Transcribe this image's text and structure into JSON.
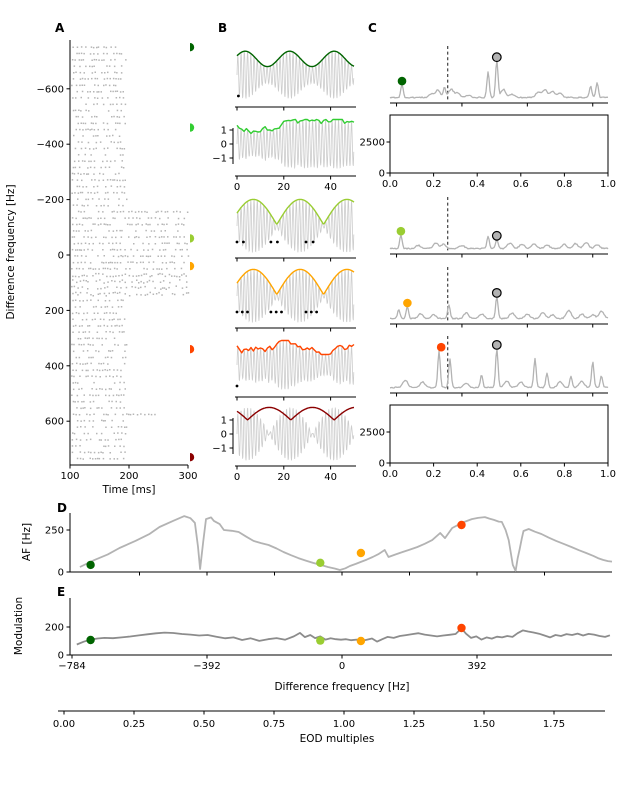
{
  "figure": {
    "background": "#ffffff"
  },
  "colors": {
    "carrier": "#cccccc",
    "spectrum_line": "#b3b3b3",
    "af_line": "#b3b3b3",
    "mod_line": "#8c8c8c",
    "raster_dot": "#b5b5b5",
    "circle_marker_fill": "#b3b3b3",
    "axis": "#000000",
    "darkgreen": "#006400",
    "limegreen": "#32cd32",
    "yellowgreen": "#9acd32",
    "orange": "#ffa500",
    "orangered": "#ff4500",
    "darkred": "#8b0000"
  },
  "chart_data": {
    "panelA": {
      "type": "scatter",
      "label": "A",
      "xlabel": "Time [ms]",
      "ylabel": "Difference frequency [Hz]",
      "xticks": [
        100,
        200,
        300
      ],
      "yticks": [
        -600,
        -400,
        -200,
        0,
        200,
        400,
        600
      ],
      "ylim": [
        -784,
        784
      ],
      "xlim": [
        100,
        300
      ],
      "raster": {
        "trial_rows": 66,
        "short_trial_ms": [
          100,
          195
        ],
        "long_trial_ms": [
          100,
          300
        ],
        "long_row_range": [
          26,
          39
        ],
        "dense_row_range": [
          36,
          39
        ],
        "medium_row": {
          "index": 58,
          "end_ms": 245
        }
      },
      "example_markers": [
        {
          "name": "darkgreen",
          "color": "#006400",
          "hz": -750
        },
        {
          "name": "limegreen",
          "color": "#32cd32",
          "hz": -460
        },
        {
          "name": "yellowgreen",
          "color": "#9acd32",
          "hz": -60
        },
        {
          "name": "orange",
          "color": "#ffa500",
          "hz": 40
        },
        {
          "name": "orangered",
          "color": "#ff4500",
          "hz": 340
        },
        {
          "name": "darkred",
          "color": "#8b0000",
          "hz": 730
        }
      ]
    },
    "panelB": {
      "type": "line",
      "label": "B",
      "duration_ms": 50,
      "xticks": [
        0,
        20,
        40
      ],
      "yticks": [
        1,
        0,
        -1
      ],
      "rows": [
        {
          "color": "#006400",
          "envelope": "sine",
          "beat_period_ms": 19,
          "peak_ms": 13,
          "spikes": [
            0.012
          ],
          "labeled_axes": false
        },
        {
          "color": "#32cd32",
          "envelope": "noisy",
          "spikes": [],
          "labeled_axes": true
        },
        {
          "color": "#9acd32",
          "envelope": "rectified",
          "scallop_period_ms": 20,
          "zero_ms": 17,
          "spikes": [
            0.0,
            0.055,
            0.29,
            0.345,
            0.59,
            0.65
          ],
          "labeled_axes": false
        },
        {
          "color": "#ffa500",
          "envelope": "rectified",
          "scallop_period_ms": 20,
          "zero_ms": 17,
          "spikes": [
            0.0,
            0.045,
            0.09,
            0.29,
            0.335,
            0.38,
            0.59,
            0.635,
            0.68
          ],
          "labeled_axes": false
        },
        {
          "color": "#ff4500",
          "envelope": "noisy",
          "spikes": [
            0.0
          ],
          "labeled_axes": false
        },
        {
          "color": "#8b0000",
          "envelope": "rectified_high",
          "scallop_period_ms": 18.5,
          "zero_ms": 4.5,
          "spikes": [],
          "labeled_axes": true
        }
      ]
    },
    "panelC": {
      "label": "C",
      "dashed_line_frac": 0.265,
      "circle_frac": 0.49,
      "empty_box_xticks": [
        0.0,
        0.2,
        0.4,
        0.6,
        0.8,
        1.0
      ],
      "empty_box_yticks": [
        2500,
        0
      ],
      "rows": [
        {
          "type": "spectrum",
          "dot": {
            "color": "#006400",
            "frac": 0.055,
            "height": 0.28
          },
          "circle_height": 0.8,
          "peaks": [
            [
              0.055,
              0.28
            ],
            [
              0.19,
              0.08
            ],
            [
              0.22,
              0.16
            ],
            [
              0.25,
              0.22
            ],
            [
              0.28,
              0.18
            ],
            [
              0.31,
              0.1
            ],
            [
              0.36,
              0.05
            ],
            [
              0.45,
              0.55
            ],
            [
              0.49,
              0.8
            ],
            [
              0.52,
              0.18
            ],
            [
              0.56,
              0.07
            ],
            [
              0.68,
              0.12
            ],
            [
              0.71,
              0.17
            ],
            [
              0.745,
              0.14
            ],
            [
              0.78,
              0.09
            ],
            [
              0.92,
              0.25
            ],
            [
              0.95,
              0.33
            ]
          ]
        },
        {
          "type": "empty"
        },
        {
          "type": "spectrum",
          "dot": {
            "color": "#9acd32",
            "frac": 0.05,
            "height": 0.3
          },
          "circle_height": 0.2,
          "peaks": [
            [
              0.05,
              0.3
            ],
            [
              0.13,
              0.07
            ],
            [
              0.21,
              0.12
            ],
            [
              0.245,
              0.09
            ],
            [
              0.33,
              0.07
            ],
            [
              0.45,
              0.26
            ],
            [
              0.49,
              0.2
            ],
            [
              0.55,
              0.12
            ],
            [
              0.605,
              0.1
            ],
            [
              0.66,
              0.11
            ],
            [
              0.72,
              0.08
            ],
            [
              0.8,
              0.09
            ],
            [
              0.85,
              0.11
            ],
            [
              0.9,
              0.13
            ],
            [
              0.95,
              0.08
            ]
          ]
        },
        {
          "type": "spectrum",
          "dot": {
            "color": "#ffa500",
            "frac": 0.08,
            "height": 0.26
          },
          "circle_height": 0.48,
          "peaks": [
            [
              0.04,
              0.2
            ],
            [
              0.08,
              0.26
            ],
            [
              0.14,
              0.1
            ],
            [
              0.2,
              0.08
            ],
            [
              0.27,
              0.3
            ],
            [
              0.35,
              0.12
            ],
            [
              0.42,
              0.1
            ],
            [
              0.49,
              0.48
            ],
            [
              0.56,
              0.12
            ],
            [
              0.63,
              0.1
            ],
            [
              0.7,
              0.13
            ],
            [
              0.745,
              0.08
            ],
            [
              0.82,
              0.18
            ],
            [
              0.88,
              0.1
            ],
            [
              0.93,
              0.08
            ],
            [
              0.97,
              0.16
            ]
          ]
        },
        {
          "type": "spectrum",
          "dot": {
            "color": "#ff4500",
            "frac": 0.235,
            "height": 0.8
          },
          "circle_height": 0.85,
          "peaks": [
            [
              0.07,
              0.16
            ],
            [
              0.15,
              0.12
            ],
            [
              0.225,
              0.8
            ],
            [
              0.275,
              0.62
            ],
            [
              0.35,
              0.1
            ],
            [
              0.42,
              0.28
            ],
            [
              0.49,
              0.85
            ],
            [
              0.535,
              0.14
            ],
            [
              0.6,
              0.12
            ],
            [
              0.665,
              0.62
            ],
            [
              0.72,
              0.3
            ],
            [
              0.78,
              0.12
            ],
            [
              0.83,
              0.24
            ],
            [
              0.88,
              0.14
            ],
            [
              0.93,
              0.55
            ],
            [
              0.97,
              0.25
            ]
          ]
        },
        {
          "type": "empty"
        }
      ]
    },
    "panelD": {
      "type": "line",
      "label": "D",
      "ylabel": "AF [Hz]",
      "yticks": [
        250,
        0
      ],
      "ylim": [
        0,
        420
      ],
      "xlim": [
        -784,
        784
      ],
      "xticks_unlabeled": [
        -588,
        -392,
        -196,
        0,
        196,
        392,
        588
      ],
      "line": [
        [
          -761,
          30
        ],
        [
          -720,
          70
        ],
        [
          -680,
          105
        ],
        [
          -646,
          143
        ],
        [
          -600,
          185
        ],
        [
          -560,
          225
        ],
        [
          -530,
          268
        ],
        [
          -490,
          305
        ],
        [
          -458,
          333
        ],
        [
          -440,
          320
        ],
        [
          -427,
          292
        ],
        [
          -418,
          150
        ],
        [
          -412,
          18
        ],
        [
          -403,
          180
        ],
        [
          -395,
          315
        ],
        [
          -380,
          325
        ],
        [
          -372,
          304
        ],
        [
          -355,
          285
        ],
        [
          -343,
          250
        ],
        [
          -320,
          245
        ],
        [
          -300,
          238
        ],
        [
          -278,
          210
        ],
        [
          -257,
          185
        ],
        [
          -235,
          172
        ],
        [
          -213,
          161
        ],
        [
          -190,
          140
        ],
        [
          -170,
          119
        ],
        [
          -148,
          100
        ],
        [
          -127,
          83
        ],
        [
          -105,
          68
        ],
        [
          -84,
          54
        ],
        [
          -62,
          42
        ],
        [
          -41,
          30
        ],
        [
          -20,
          20
        ],
        [
          -6,
          12
        ],
        [
          10,
          22
        ],
        [
          23,
          36
        ],
        [
          40,
          48
        ],
        [
          55,
          60
        ],
        [
          72,
          74
        ],
        [
          89,
          89
        ],
        [
          107,
          108
        ],
        [
          124,
          131
        ],
        [
          135,
          89
        ],
        [
          155,
          104
        ],
        [
          176,
          119
        ],
        [
          198,
          134
        ],
        [
          219,
          149
        ],
        [
          240,
          168
        ],
        [
          262,
          190
        ],
        [
          285,
          232
        ],
        [
          299,
          202
        ],
        [
          320,
          262
        ],
        [
          348,
          292
        ],
        [
          377,
          315
        ],
        [
          395,
          322
        ],
        [
          415,
          327
        ],
        [
          428,
          318
        ],
        [
          441,
          310
        ],
        [
          455,
          300
        ],
        [
          464,
          298
        ],
        [
          475,
          250
        ],
        [
          484,
          190
        ],
        [
          496,
          42
        ],
        [
          504,
          6
        ],
        [
          510,
          80
        ],
        [
          516,
          137
        ],
        [
          522,
          200
        ],
        [
          527,
          244
        ],
        [
          542,
          256
        ],
        [
          560,
          240
        ],
        [
          579,
          226
        ],
        [
          600,
          205
        ],
        [
          622,
          185
        ],
        [
          645,
          166
        ],
        [
          666,
          149
        ],
        [
          688,
          130
        ],
        [
          709,
          113
        ],
        [
          730,
          96
        ],
        [
          743,
          83
        ],
        [
          758,
          72
        ],
        [
          772,
          65
        ],
        [
          784,
          62
        ]
      ],
      "dots": [
        {
          "color": "#006400",
          "hz": -730,
          "value": 42
        },
        {
          "color": "#9acd32",
          "hz": -63,
          "value": 55
        },
        {
          "color": "#ffa500",
          "hz": 55,
          "value": 113
        },
        {
          "color": "#ff4500",
          "hz": 347,
          "value": 280
        }
      ]
    },
    "panelE": {
      "type": "line",
      "label": "E",
      "ylabel": "Modulation",
      "xlabel": "Difference frequency [Hz]",
      "yticks": [
        200,
        0
      ],
      "ylim": [
        0,
        400
      ],
      "xlim": [
        -784,
        784
      ],
      "xticks": [
        -784,
        -392,
        0,
        392
      ],
      "line": [
        [
          -770,
          75
        ],
        [
          -750,
          95
        ],
        [
          -730,
          110
        ],
        [
          -710,
          118
        ],
        [
          -690,
          122
        ],
        [
          -665,
          120
        ],
        [
          -640,
          126
        ],
        [
          -615,
          132
        ],
        [
          -590,
          140
        ],
        [
          -565,
          148
        ],
        [
          -540,
          155
        ],
        [
          -515,
          160
        ],
        [
          -490,
          157
        ],
        [
          -465,
          150
        ],
        [
          -440,
          146
        ],
        [
          -415,
          139
        ],
        [
          -390,
          143
        ],
        [
          -365,
          131
        ],
        [
          -340,
          119
        ],
        [
          -315,
          126
        ],
        [
          -290,
          107
        ],
        [
          -265,
          119
        ],
        [
          -240,
          101
        ],
        [
          -215,
          113
        ],
        [
          -190,
          121
        ],
        [
          -165,
          109
        ],
        [
          -140,
          133
        ],
        [
          -122,
          158
        ],
        [
          -108,
          128
        ],
        [
          -92,
          143
        ],
        [
          -78,
          121
        ],
        [
          -63,
          133
        ],
        [
          -48,
          110
        ],
        [
          -33,
          119
        ],
        [
          -18,
          113
        ],
        [
          -3,
          109
        ],
        [
          12,
          113
        ],
        [
          27,
          106
        ],
        [
          42,
          110
        ],
        [
          57,
          101
        ],
        [
          72,
          109
        ],
        [
          87,
          118
        ],
        [
          102,
          96
        ],
        [
          117,
          113
        ],
        [
          132,
          129
        ],
        [
          150,
          122
        ],
        [
          168,
          136
        ],
        [
          186,
          142
        ],
        [
          204,
          149
        ],
        [
          222,
          156
        ],
        [
          240,
          146
        ],
        [
          258,
          139
        ],
        [
          276,
          133
        ],
        [
          294,
          139
        ],
        [
          312,
          144
        ],
        [
          330,
          150
        ],
        [
          347,
          190
        ],
        [
          360,
          152
        ],
        [
          375,
          122
        ],
        [
          390,
          133
        ],
        [
          405,
          110
        ],
        [
          420,
          126
        ],
        [
          435,
          117
        ],
        [
          450,
          131
        ],
        [
          465,
          126
        ],
        [
          480,
          136
        ],
        [
          495,
          129
        ],
        [
          510,
          156
        ],
        [
          525,
          176
        ],
        [
          540,
          168
        ],
        [
          556,
          161
        ],
        [
          572,
          152
        ],
        [
          588,
          139
        ],
        [
          604,
          126
        ],
        [
          620,
          143
        ],
        [
          636,
          136
        ],
        [
          652,
          149
        ],
        [
          668,
          143
        ],
        [
          684,
          153
        ],
        [
          700,
          139
        ],
        [
          716,
          151
        ],
        [
          732,
          146
        ],
        [
          748,
          136
        ],
        [
          764,
          129
        ],
        [
          778,
          141
        ]
      ],
      "dots": [
        {
          "color": "#006400",
          "hz": -730,
          "value": 107
        },
        {
          "color": "#9acd32",
          "hz": -63,
          "value": 103
        },
        {
          "color": "#ffa500",
          "hz": 55,
          "value": 100
        },
        {
          "color": "#ff4500",
          "hz": 347,
          "value": 193
        }
      ]
    },
    "eod_axis": {
      "label": "EOD multiples",
      "ticks": [
        0.0,
        0.25,
        0.5,
        0.75,
        1.0,
        1.25,
        1.5,
        1.75
      ]
    }
  }
}
